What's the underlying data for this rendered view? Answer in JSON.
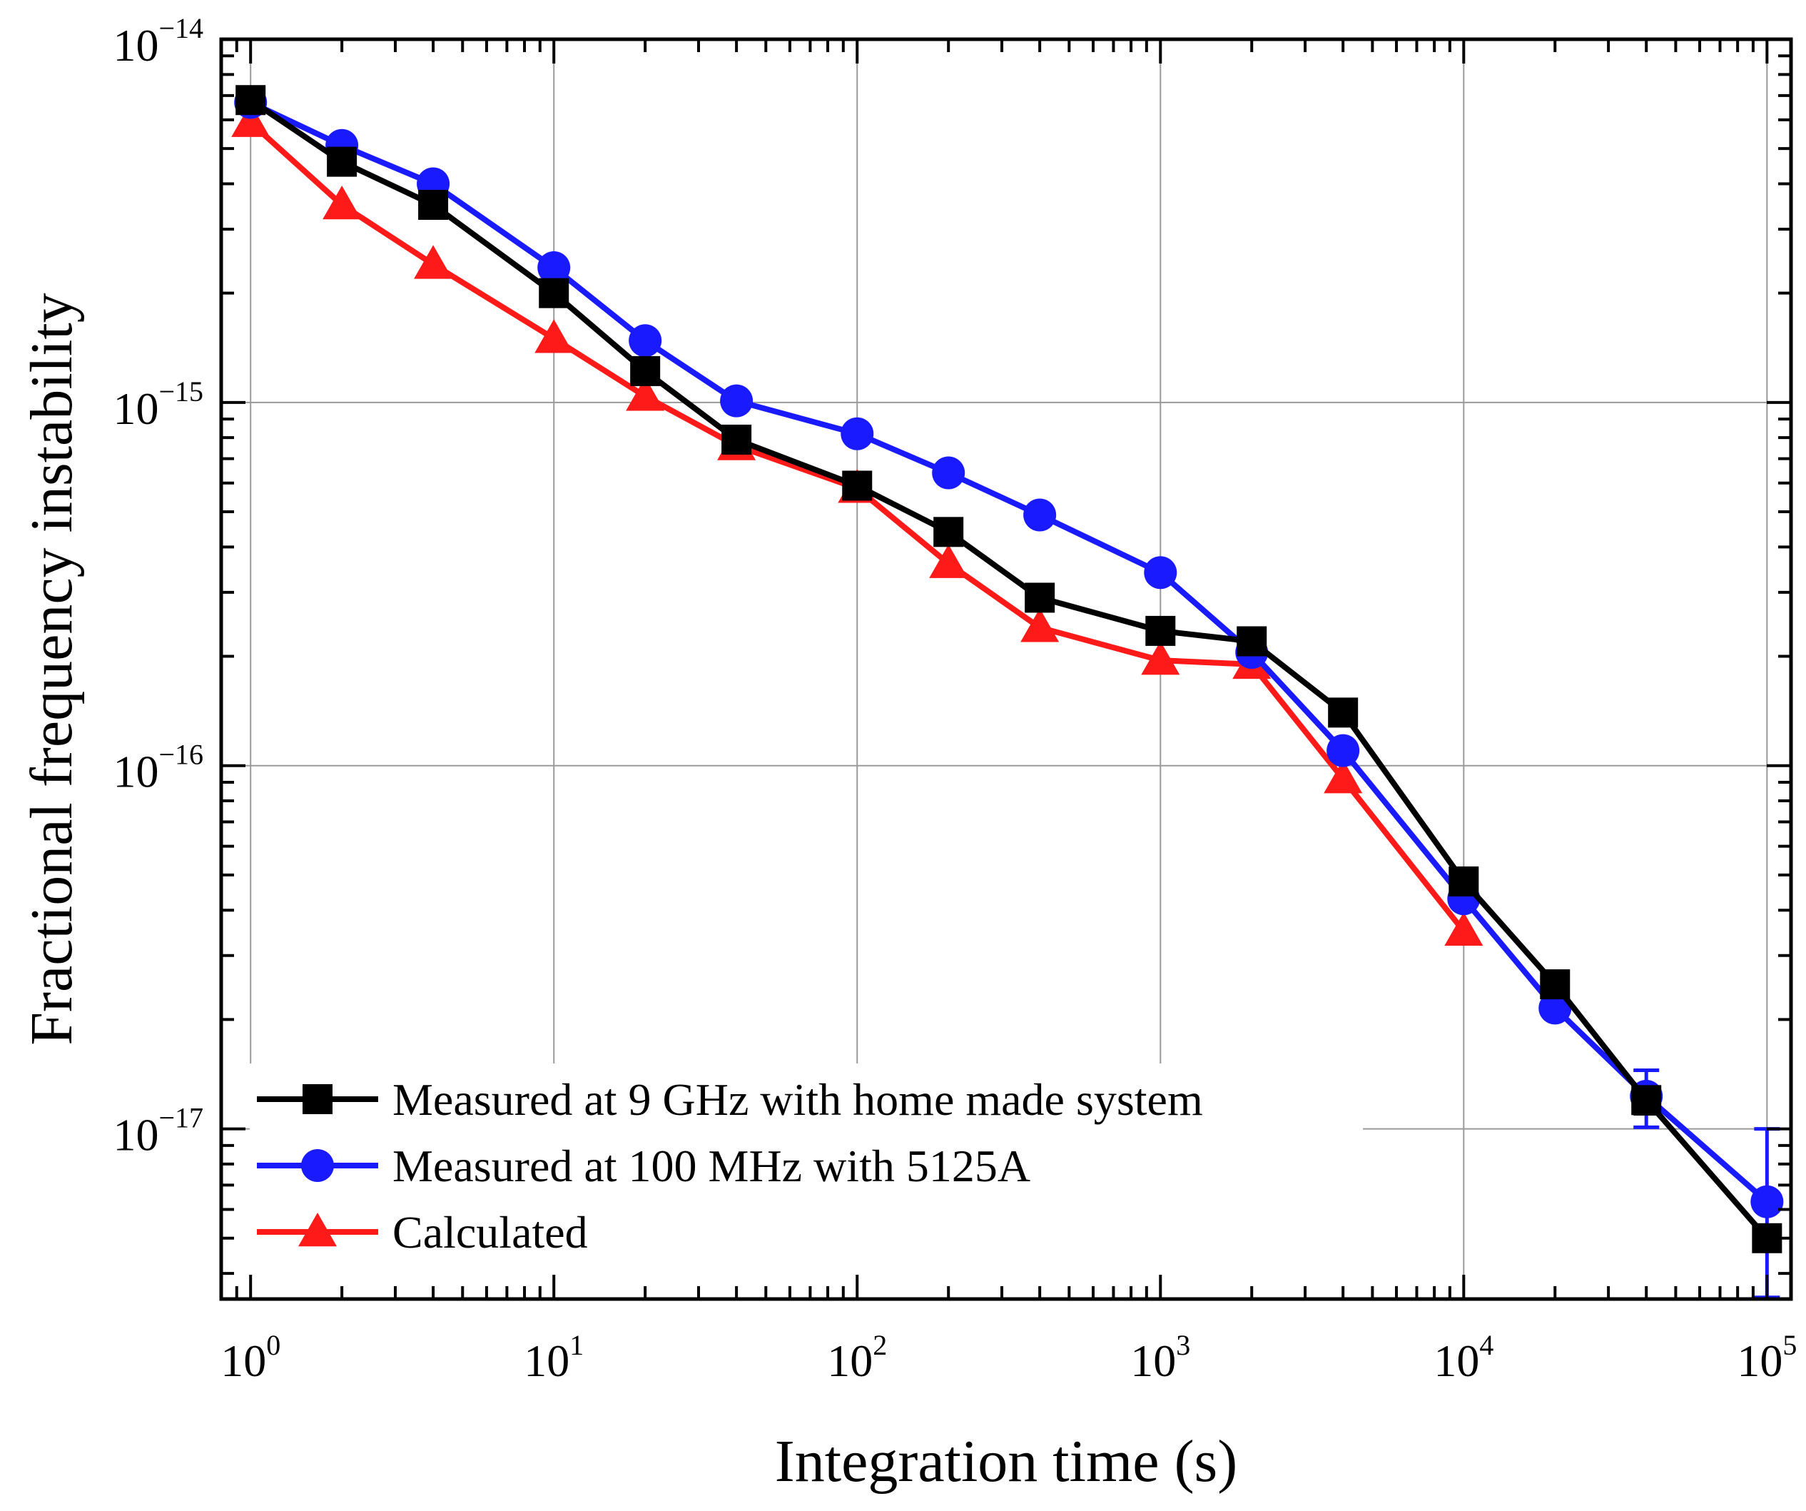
{
  "chart_data": {
    "type": "line",
    "title": "",
    "xlabel": "Integration time (s)",
    "ylabel": "Fractional frequency instability",
    "x_scale": "log",
    "y_scale": "log",
    "xlim": [
      0.8,
      120000
    ],
    "ylim": [
      3.4e-18,
      1e-14
    ],
    "grid": true,
    "legend_position": "bottom-left",
    "x_ticks": [
      {
        "value": 1,
        "base": "10",
        "exp": "0"
      },
      {
        "value": 10,
        "base": "10",
        "exp": "1"
      },
      {
        "value": 100,
        "base": "10",
        "exp": "2"
      },
      {
        "value": 1000,
        "base": "10",
        "exp": "3"
      },
      {
        "value": 10000,
        "base": "10",
        "exp": "4"
      },
      {
        "value": 100000,
        "base": "10",
        "exp": "5"
      }
    ],
    "y_ticks": [
      {
        "value": 1e-14,
        "base": "10",
        "exp": "−14"
      },
      {
        "value": 1e-15,
        "base": "10",
        "exp": "−15"
      },
      {
        "value": 1e-16,
        "base": "10",
        "exp": "−16"
      },
      {
        "value": 1e-17,
        "base": "10",
        "exp": "−17"
      }
    ],
    "series": [
      {
        "name": "Measured at 9 GHz with home made system",
        "color": "#000000",
        "marker": "square",
        "x": [
          1,
          2,
          4,
          10,
          20,
          40,
          100,
          200,
          400,
          1000,
          2000,
          4000,
          10000,
          20000,
          40000,
          100000
        ],
        "y": [
          6.8e-15,
          4.6e-15,
          3.5e-15,
          2e-15,
          1.22e-15,
          7.9e-16,
          5.9e-16,
          4.4e-16,
          2.9e-16,
          2.35e-16,
          2.2e-16,
          1.4e-16,
          4.8e-17,
          2.5e-17,
          1.2e-17,
          5e-18
        ],
        "error_y": [
          0,
          0,
          0,
          0,
          0,
          0,
          0,
          0,
          0,
          0,
          0,
          0,
          0,
          0,
          1e-18,
          3e-19
        ]
      },
      {
        "name": "Measured at 100 MHz with 5125A",
        "color": "#1a1aff",
        "marker": "circle",
        "x": [
          1,
          2,
          4,
          10,
          20,
          40,
          100,
          200,
          400,
          1000,
          2000,
          4000,
          10000,
          20000,
          40000,
          100000
        ],
        "y": [
          6.7e-15,
          5.1e-15,
          4e-15,
          2.35e-15,
          1.48e-15,
          1.01e-15,
          8.2e-16,
          6.4e-16,
          4.9e-16,
          3.4e-16,
          2.05e-16,
          1.1e-16,
          4.3e-17,
          2.15e-17,
          1.23e-17,
          6.3e-18
        ],
        "error_y": [
          0,
          0,
          0,
          0,
          0,
          0,
          0,
          0,
          0,
          0,
          0,
          0,
          0,
          0,
          2.2e-18,
          3.7e-18
        ]
      },
      {
        "name": "Calculated",
        "color": "#ff1a1a",
        "marker": "triangle",
        "x": [
          1,
          2,
          4,
          10,
          20,
          40,
          100,
          200,
          400,
          1000,
          2000,
          4000,
          10000
        ],
        "y": [
          5.9e-15,
          3.5e-15,
          2.4e-15,
          1.5e-15,
          1.04e-15,
          7.6e-16,
          5.8e-16,
          3.6e-16,
          2.4e-16,
          1.95e-16,
          1.9e-16,
          9.2e-17,
          3.5e-17
        ],
        "error_y": [
          0,
          0,
          0,
          0,
          0,
          0,
          0,
          0,
          0,
          0,
          0,
          0,
          0
        ]
      }
    ]
  }
}
